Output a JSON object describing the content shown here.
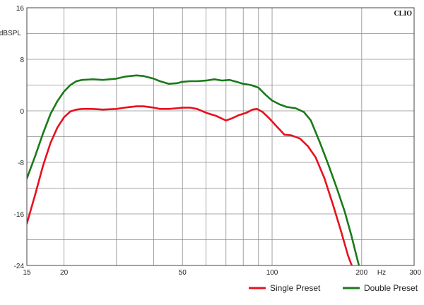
{
  "chart_data": {
    "type": "line",
    "brand": "CLIO",
    "ylabel": "dBSPL",
    "xunit": "Hz",
    "x_scale": "log",
    "xlim": [
      15,
      300
    ],
    "ylim": [
      -24,
      16
    ],
    "grid": true,
    "legend_placement": "bottom-right",
    "x_tick_labels": [
      {
        "value": 15,
        "label": "15"
      },
      {
        "value": 20,
        "label": "20"
      },
      {
        "value": 50,
        "label": "50"
      },
      {
        "value": 100,
        "label": "100"
      },
      {
        "value": 200,
        "label": "200"
      },
      {
        "value": 300,
        "label": "300"
      }
    ],
    "x_grid_values": [
      20,
      30,
      40,
      50,
      60,
      70,
      80,
      90,
      100,
      200
    ],
    "y_ticks": [
      16,
      8,
      0,
      -8,
      -16,
      -24
    ],
    "y_grid_values": [
      12,
      8,
      4,
      0,
      -4,
      -8,
      -12,
      -16,
      -20
    ],
    "series": [
      {
        "name": "Single Preset",
        "color": "#e8101e",
        "points": [
          [
            15,
            -17.5
          ],
          [
            16,
            -13
          ],
          [
            17,
            -8.5
          ],
          [
            18,
            -5
          ],
          [
            19,
            -2.6
          ],
          [
            20,
            -1
          ],
          [
            21,
            -0.1
          ],
          [
            22,
            0.2
          ],
          [
            23,
            0.3
          ],
          [
            25,
            0.3
          ],
          [
            27,
            0.2
          ],
          [
            30,
            0.3
          ],
          [
            32,
            0.5
          ],
          [
            35,
            0.7
          ],
          [
            37,
            0.7
          ],
          [
            40,
            0.5
          ],
          [
            42,
            0.3
          ],
          [
            45,
            0.3
          ],
          [
            48,
            0.4
          ],
          [
            50,
            0.5
          ],
          [
            53,
            0.5
          ],
          [
            56,
            0.3
          ],
          [
            60,
            -0.3
          ],
          [
            65,
            -0.8
          ],
          [
            70,
            -1.5
          ],
          [
            73,
            -1.2
          ],
          [
            77,
            -0.7
          ],
          [
            82,
            -0.3
          ],
          [
            86,
            0.2
          ],
          [
            89,
            0.3
          ],
          [
            93,
            -0.2
          ],
          [
            98,
            -1.2
          ],
          [
            104,
            -2.5
          ],
          [
            110,
            -3.7
          ],
          [
            116,
            -3.8
          ],
          [
            124,
            -4.3
          ],
          [
            132,
            -5.5
          ],
          [
            140,
            -7.2
          ],
          [
            150,
            -10.5
          ],
          [
            160,
            -14.5
          ],
          [
            170,
            -18.5
          ],
          [
            180,
            -22.5
          ],
          [
            187,
            -24.5
          ]
        ]
      },
      {
        "name": "Double Preset",
        "color": "#1a7a1a",
        "points": [
          [
            15,
            -10.5
          ],
          [
            16,
            -7
          ],
          [
            17,
            -3.5
          ],
          [
            18,
            -0.5
          ],
          [
            19,
            1.5
          ],
          [
            20,
            3
          ],
          [
            21,
            4
          ],
          [
            22,
            4.6
          ],
          [
            23,
            4.8
          ],
          [
            25,
            4.9
          ],
          [
            27,
            4.8
          ],
          [
            30,
            5
          ],
          [
            32,
            5.3
          ],
          [
            35,
            5.5
          ],
          [
            37,
            5.4
          ],
          [
            40,
            5
          ],
          [
            42,
            4.6
          ],
          [
            45,
            4.2
          ],
          [
            48,
            4.3
          ],
          [
            50,
            4.5
          ],
          [
            53,
            4.6
          ],
          [
            56,
            4.6
          ],
          [
            60,
            4.7
          ],
          [
            64,
            4.9
          ],
          [
            68,
            4.7
          ],
          [
            72,
            4.8
          ],
          [
            76,
            4.5
          ],
          [
            80,
            4.2
          ],
          [
            85,
            4
          ],
          [
            90,
            3.6
          ],
          [
            95,
            2.5
          ],
          [
            100,
            1.6
          ],
          [
            106,
            1
          ],
          [
            112,
            0.6
          ],
          [
            120,
            0.4
          ],
          [
            128,
            -0.2
          ],
          [
            135,
            -1.5
          ],
          [
            145,
            -5
          ],
          [
            155,
            -8.5
          ],
          [
            165,
            -12
          ],
          [
            175,
            -15.5
          ],
          [
            185,
            -19.5
          ],
          [
            192,
            -22.5
          ],
          [
            197,
            -24.5
          ]
        ]
      }
    ]
  }
}
